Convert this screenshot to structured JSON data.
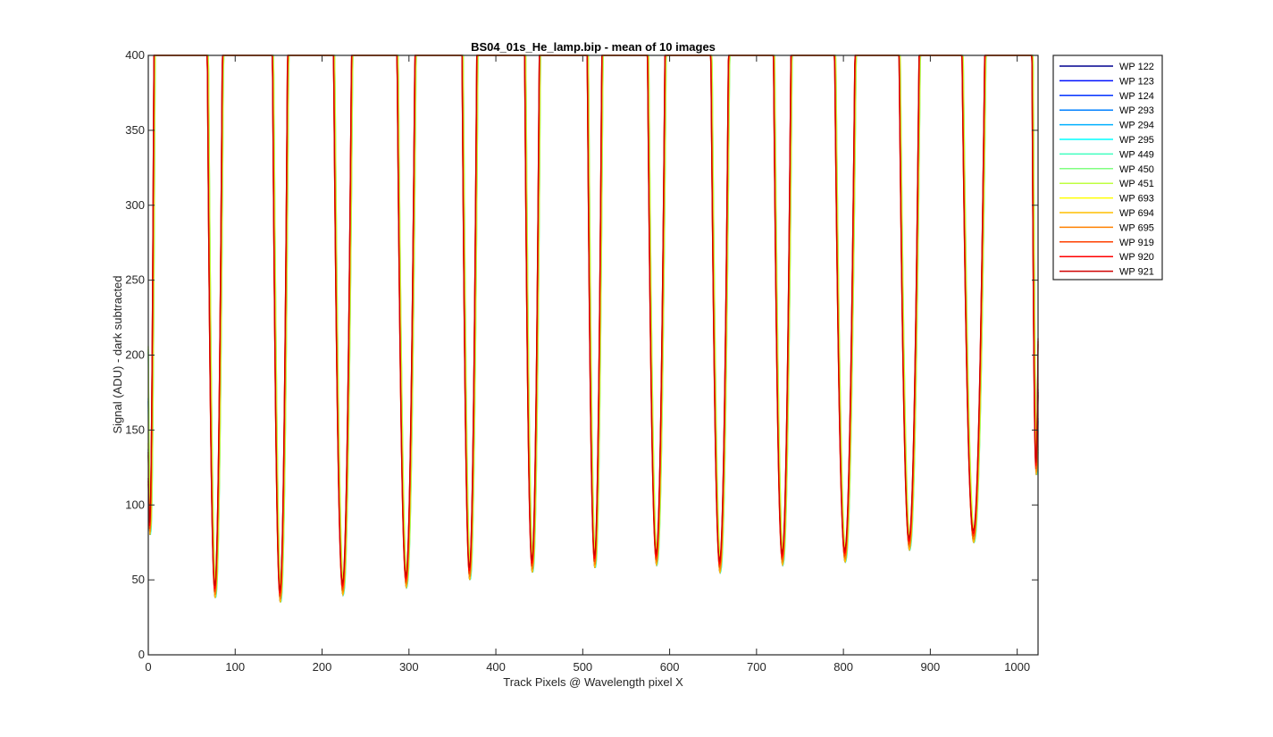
{
  "chart_data": {
    "type": "line",
    "title": "BS04_01s_He_lamp.bip - mean of 10 images",
    "xlabel": "Track Pixels @ Wavelength pixel X",
    "ylabel": "Signal (ADU) - dark subtracted",
    "xlim": [
      0,
      1024
    ],
    "ylim": [
      0,
      400
    ],
    "x_ticks": [
      0,
      100,
      200,
      300,
      400,
      500,
      600,
      700,
      800,
      900,
      1000
    ],
    "y_ticks": [
      0,
      50,
      100,
      150,
      200,
      250,
      300,
      350,
      400
    ],
    "grid": false,
    "legend_position": "outside-top-right",
    "dips": [
      {
        "center": 2,
        "min": 80,
        "halfwidth": 3
      },
      {
        "center": 77,
        "min": 38,
        "halfwidth": 5
      },
      {
        "center": 152,
        "min": 35,
        "halfwidth": 5
      },
      {
        "center": 224,
        "min": 40,
        "halfwidth": 6
      },
      {
        "center": 297,
        "min": 45,
        "halfwidth": 6
      },
      {
        "center": 370,
        "min": 50,
        "halfwidth": 5
      },
      {
        "center": 442,
        "min": 55,
        "halfwidth": 5
      },
      {
        "center": 514,
        "min": 58,
        "halfwidth": 5
      },
      {
        "center": 585,
        "min": 60,
        "halfwidth": 6
      },
      {
        "center": 658,
        "min": 55,
        "halfwidth": 6
      },
      {
        "center": 730,
        "min": 60,
        "halfwidth": 6
      },
      {
        "center": 802,
        "min": 62,
        "halfwidth": 7
      },
      {
        "center": 876,
        "min": 70,
        "halfwidth": 7
      },
      {
        "center": 950,
        "min": 75,
        "halfwidth": 8
      },
      {
        "center": 1022,
        "min": 120,
        "halfwidth": 3
      }
    ],
    "series": [
      {
        "name": "WP 122",
        "color": "#00008f",
        "offset": 0
      },
      {
        "name": "WP 123",
        "color": "#0010ff",
        "offset": 0
      },
      {
        "name": "WP 124",
        "color": "#0030ff",
        "offset": 0
      },
      {
        "name": "WP 293",
        "color": "#0080ff",
        "offset": 0.5
      },
      {
        "name": "WP 294",
        "color": "#00b0ff",
        "offset": 0.5
      },
      {
        "name": "WP 295",
        "color": "#00ffff",
        "offset": 0.5
      },
      {
        "name": "WP 449",
        "color": "#40ffbf",
        "offset": 1
      },
      {
        "name": "WP 450",
        "color": "#80ff80",
        "offset": 1
      },
      {
        "name": "WP 451",
        "color": "#bfff40",
        "offset": 1
      },
      {
        "name": "WP 693",
        "color": "#ffff00",
        "offset": 0
      },
      {
        "name": "WP 694",
        "color": "#ffbf00",
        "offset": 0
      },
      {
        "name": "WP 695",
        "color": "#ff8000",
        "offset": 0
      },
      {
        "name": "WP 919",
        "color": "#ff4000",
        "offset": -0.5
      },
      {
        "name": "WP 920",
        "color": "#ff0000",
        "offset": -0.5
      },
      {
        "name": "WP 921",
        "color": "#cf0000",
        "offset": -0.5
      }
    ]
  }
}
